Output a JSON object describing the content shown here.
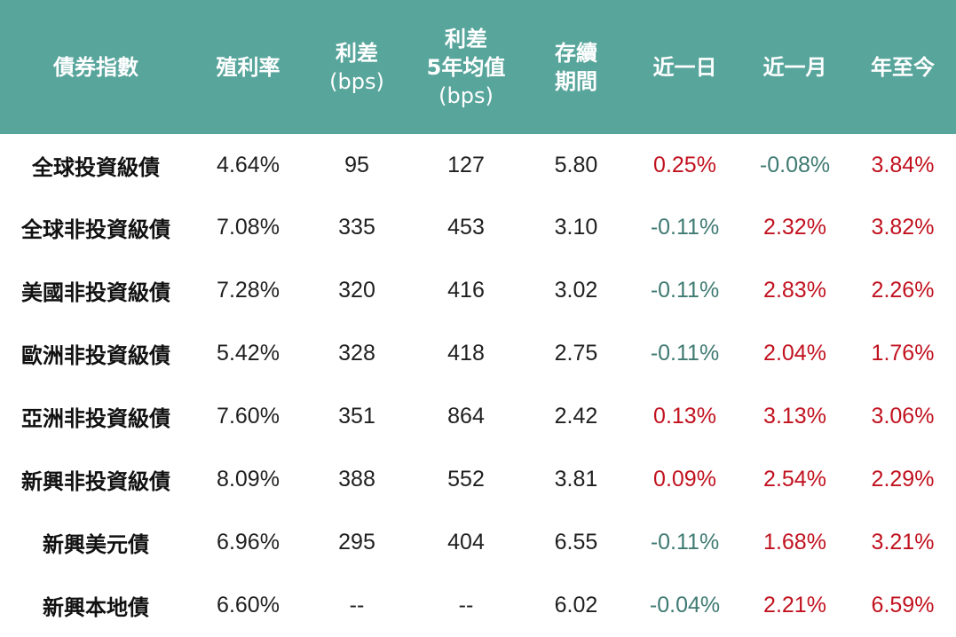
{
  "headers": {
    "index": "債券指數",
    "yield": "殖利率",
    "spread_line1": "利差",
    "spread_line2": "(bps)",
    "spread5y_line1": "利差",
    "spread5y_line2": "5年均值",
    "spread5y_line3": "(bps)",
    "duration_line1": "存續",
    "duration_line2": "期間",
    "d1": "近一日",
    "m1": "近一月",
    "ytd": "年至今"
  },
  "colors": {
    "header_bg": "#58a59c",
    "positive": "#c1121f",
    "negative": "#3f7a72"
  },
  "rows": [
    {
      "name": "全球投資級債",
      "yield": "4.64%",
      "spread": "95",
      "spread5y": "127",
      "duration": "5.80",
      "d1": "0.25%",
      "m1": "-0.08%",
      "ytd": "3.84%"
    },
    {
      "name": "全球非投資級債",
      "yield": "7.08%",
      "spread": "335",
      "spread5y": "453",
      "duration": "3.10",
      "d1": "-0.11%",
      "m1": "2.32%",
      "ytd": "3.82%"
    },
    {
      "name": "美國非投資級債",
      "yield": "7.28%",
      "spread": "320",
      "spread5y": "416",
      "duration": "3.02",
      "d1": "-0.11%",
      "m1": "2.83%",
      "ytd": "2.26%"
    },
    {
      "name": "歐洲非投資級債",
      "yield": "5.42%",
      "spread": "328",
      "spread5y": "418",
      "duration": "2.75",
      "d1": "-0.11%",
      "m1": "2.04%",
      "ytd": "1.76%"
    },
    {
      "name": "亞洲非投資級債",
      "yield": "7.60%",
      "spread": "351",
      "spread5y": "864",
      "duration": "2.42",
      "d1": "0.13%",
      "m1": "3.13%",
      "ytd": "3.06%"
    },
    {
      "name": "新興非投資級債",
      "yield": "8.09%",
      "spread": "388",
      "spread5y": "552",
      "duration": "3.81",
      "d1": "0.09%",
      "m1": "2.54%",
      "ytd": "2.29%"
    },
    {
      "name": "新興美元債",
      "yield": "6.96%",
      "spread": "295",
      "spread5y": "404",
      "duration": "6.55",
      "d1": "-0.11%",
      "m1": "1.68%",
      "ytd": "3.21%"
    },
    {
      "name": "新興本地債",
      "yield": "6.60%",
      "spread": "--",
      "spread5y": "--",
      "duration": "6.02",
      "d1": "-0.04%",
      "m1": "2.21%",
      "ytd": "6.59%"
    }
  ]
}
